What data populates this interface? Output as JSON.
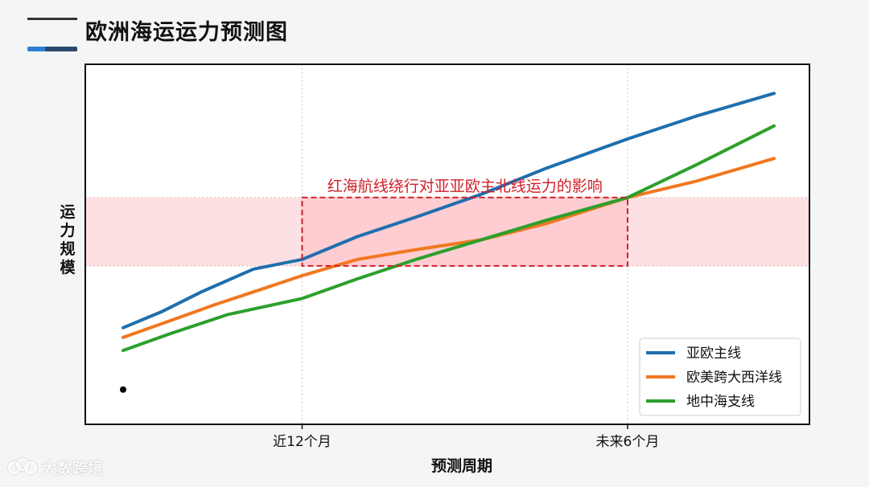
{
  "title": "欧洲海运运力预测图",
  "watermark": "大数跨境",
  "colors": {
    "series1": "#1f6fad",
    "series2": "#f07820",
    "series3": "#2ca02c",
    "band": "#fde0e2",
    "annotation": "#d0202a"
  },
  "chart_data": {
    "type": "line",
    "title": "",
    "xlabel": "预测周期",
    "ylabel": "运力规模",
    "xlim": [
      0,
      1
    ],
    "ylim": [
      0,
      1
    ],
    "grid": "vertical-dotted",
    "legend_position": "bottom-right",
    "xticks": [
      {
        "value": 0.275,
        "label": "近12个月"
      },
      {
        "value": 0.775,
        "label": "未来6个月"
      }
    ],
    "band": {
      "y": [
        0.43,
        0.64
      ]
    },
    "annotation": {
      "text": "红海航线绕行对亚亚欧主北线运力的影响",
      "x": [
        0.275,
        0.775
      ],
      "y": [
        0.43,
        0.64
      ]
    },
    "marker_point": {
      "x": 0.0,
      "y": 0.05
    },
    "series": [
      {
        "name": "亚欧主线",
        "x": [
          0.0,
          0.06,
          0.12,
          0.2,
          0.275,
          0.36,
          0.45,
          0.55,
          0.65,
          0.775,
          0.88,
          1.0
        ],
        "y": [
          0.24,
          0.29,
          0.35,
          0.42,
          0.45,
          0.52,
          0.58,
          0.65,
          0.73,
          0.82,
          0.89,
          0.96
        ]
      },
      {
        "name": "欧美跨大西洋线",
        "x": [
          0.0,
          0.07,
          0.14,
          0.2,
          0.275,
          0.36,
          0.45,
          0.55,
          0.65,
          0.775,
          0.88,
          1.0
        ],
        "y": [
          0.21,
          0.26,
          0.31,
          0.35,
          0.4,
          0.45,
          0.48,
          0.51,
          0.56,
          0.64,
          0.69,
          0.76
        ]
      },
      {
        "name": "地中海支线",
        "x": [
          0.0,
          0.07,
          0.16,
          0.275,
          0.36,
          0.45,
          0.55,
          0.65,
          0.775,
          0.88,
          1.0
        ],
        "y": [
          0.17,
          0.22,
          0.28,
          0.33,
          0.39,
          0.45,
          0.51,
          0.57,
          0.64,
          0.74,
          0.86
        ]
      }
    ]
  }
}
